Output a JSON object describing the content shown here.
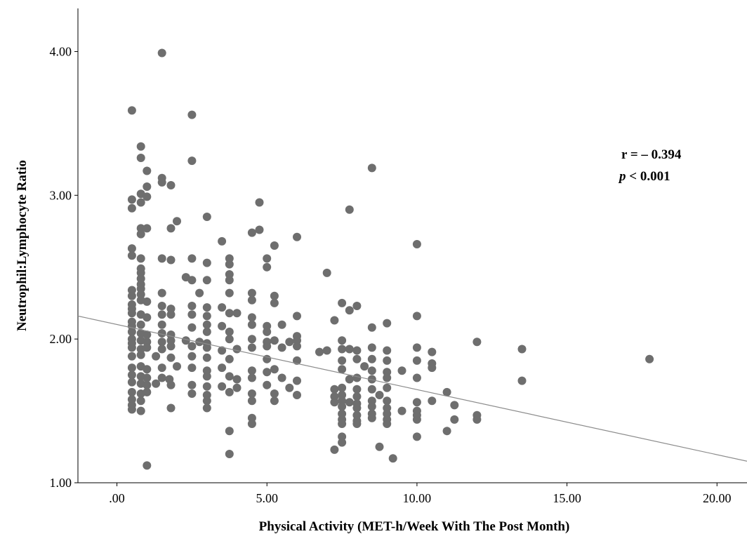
{
  "chart_data": {
    "type": "scatter",
    "title": "",
    "xlabel": "Physical Activity (MET-h/Week With The Post Month)",
    "ylabel": "Neutrophil:Lymphocyte Ratio",
    "xlim": [
      -1.3,
      21.0
    ],
    "ylim": [
      1.0,
      4.3
    ],
    "x_ticks": [
      0,
      5,
      10,
      15,
      20
    ],
    "x_tick_labels": [
      ".00",
      "5.00",
      "10.00",
      "15.00",
      "20.00"
    ],
    "y_ticks": [
      1,
      2,
      3,
      4
    ],
    "y_tick_labels": [
      "1.00",
      "2.00",
      "3.00",
      "4.00"
    ],
    "grid": false,
    "marker_color": "#6e6e6e",
    "line_color": "#8c8c8c",
    "annotations": {
      "r_text": "r = – 0.394",
      "p_italic": "p",
      "p_rest": " < 0.001"
    },
    "fit_line": {
      "x": [
        -1.3,
        21.0
      ],
      "y": [
        2.16,
        1.15
      ]
    },
    "points": [
      [
        0.5,
        3.59
      ],
      [
        1.5,
        3.99
      ],
      [
        2.5,
        3.56
      ],
      [
        0.8,
        3.34
      ],
      [
        0.8,
        3.26
      ],
      [
        2.5,
        3.24
      ],
      [
        1.0,
        3.17
      ],
      [
        1.5,
        3.12
      ],
      [
        1.5,
        3.09
      ],
      [
        1.8,
        3.07
      ],
      [
        1.0,
        3.06
      ],
      [
        0.8,
        3.01
      ],
      [
        1.0,
        2.99
      ],
      [
        0.5,
        2.97
      ],
      [
        0.5,
        2.91
      ],
      [
        0.8,
        2.95
      ],
      [
        2.0,
        2.82
      ],
      [
        3.0,
        2.85
      ],
      [
        4.75,
        2.95
      ],
      [
        7.75,
        2.9
      ],
      [
        8.5,
        3.19
      ],
      [
        0.8,
        2.77
      ],
      [
        0.8,
        2.73
      ],
      [
        1.0,
        2.77
      ],
      [
        1.8,
        2.77
      ],
      [
        4.75,
        2.76
      ],
      [
        4.5,
        2.74
      ],
      [
        3.5,
        2.68
      ],
      [
        6.0,
        2.71
      ],
      [
        5.25,
        2.65
      ],
      [
        10.0,
        2.66
      ],
      [
        0.5,
        2.63
      ],
      [
        0.5,
        2.58
      ],
      [
        0.8,
        2.56
      ],
      [
        1.5,
        2.56
      ],
      [
        1.8,
        2.55
      ],
      [
        2.5,
        2.56
      ],
      [
        3.0,
        2.53
      ],
      [
        3.75,
        2.56
      ],
      [
        3.75,
        2.52
      ],
      [
        5.0,
        2.56
      ],
      [
        5.0,
        2.5
      ],
      [
        0.8,
        2.49
      ],
      [
        0.8,
        2.46
      ],
      [
        7.0,
        2.46
      ],
      [
        0.8,
        2.42
      ],
      [
        2.3,
        2.43
      ],
      [
        2.5,
        2.41
      ],
      [
        3.0,
        2.41
      ],
      [
        3.75,
        2.45
      ],
      [
        3.75,
        2.41
      ],
      [
        0.8,
        2.38
      ],
      [
        0.8,
        2.35
      ],
      [
        0.5,
        2.34
      ],
      [
        0.5,
        2.3
      ],
      [
        0.8,
        2.31
      ],
      [
        1.5,
        2.32
      ],
      [
        2.75,
        2.32
      ],
      [
        3.75,
        2.32
      ],
      [
        4.5,
        2.32
      ],
      [
        5.25,
        2.3
      ],
      [
        0.5,
        2.24
      ],
      [
        0.5,
        2.21
      ],
      [
        0.8,
        2.27
      ],
      [
        1.0,
        2.26
      ],
      [
        1.5,
        2.23
      ],
      [
        1.8,
        2.21
      ],
      [
        2.5,
        2.23
      ],
      [
        3.0,
        2.22
      ],
      [
        3.5,
        2.22
      ],
      [
        4.5,
        2.27
      ],
      [
        5.25,
        2.25
      ],
      [
        7.5,
        2.25
      ],
      [
        8.0,
        2.23
      ],
      [
        7.75,
        2.2
      ],
      [
        0.5,
        2.18
      ],
      [
        0.8,
        2.17
      ],
      [
        1.0,
        2.15
      ],
      [
        1.5,
        2.17
      ],
      [
        1.8,
        2.17
      ],
      [
        2.5,
        2.17
      ],
      [
        3.0,
        2.16
      ],
      [
        3.75,
        2.18
      ],
      [
        4.0,
        2.18
      ],
      [
        4.5,
        2.15
      ],
      [
        6.0,
        2.16
      ],
      [
        7.25,
        2.13
      ],
      [
        10.0,
        2.16
      ],
      [
        9.0,
        2.11
      ],
      [
        0.5,
        2.12
      ],
      [
        0.5,
        2.09
      ],
      [
        0.8,
        2.1
      ],
      [
        1.5,
        2.1
      ],
      [
        2.5,
        2.08
      ],
      [
        3.0,
        2.1
      ],
      [
        3.5,
        2.09
      ],
      [
        5.0,
        2.09
      ],
      [
        5.5,
        2.1
      ],
      [
        4.5,
        2.1
      ],
      [
        8.5,
        2.08
      ],
      [
        0.5,
        2.05
      ],
      [
        0.8,
        2.04
      ],
      [
        1.0,
        2.03
      ],
      [
        1.5,
        2.04
      ],
      [
        1.8,
        2.03
      ],
      [
        3.0,
        2.05
      ],
      [
        3.75,
        2.05
      ],
      [
        5.0,
        2.05
      ],
      [
        6.0,
        2.02
      ],
      [
        0.5,
        2.0
      ],
      [
        0.5,
        1.97
      ],
      [
        0.8,
        1.99
      ],
      [
        1.0,
        1.98
      ],
      [
        1.5,
        1.98
      ],
      [
        1.8,
        1.99
      ],
      [
        2.3,
        1.99
      ],
      [
        2.75,
        1.98
      ],
      [
        3.0,
        1.97
      ],
      [
        3.75,
        2.0
      ],
      [
        4.5,
        2.0
      ],
      [
        5.0,
        1.98
      ],
      [
        5.25,
        1.99
      ],
      [
        5.75,
        1.98
      ],
      [
        6.0,
        1.99
      ],
      [
        7.5,
        1.99
      ],
      [
        12.0,
        1.98
      ],
      [
        0.5,
        1.94
      ],
      [
        0.8,
        1.93
      ],
      [
        1.0,
        1.94
      ],
      [
        1.5,
        1.93
      ],
      [
        1.8,
        1.95
      ],
      [
        2.5,
        1.95
      ],
      [
        3.0,
        1.94
      ],
      [
        3.5,
        1.92
      ],
      [
        4.0,
        1.93
      ],
      [
        4.5,
        1.94
      ],
      [
        5.0,
        1.95
      ],
      [
        5.5,
        1.94
      ],
      [
        6.0,
        1.95
      ],
      [
        6.75,
        1.91
      ],
      [
        7.0,
        1.92
      ],
      [
        7.5,
        1.93
      ],
      [
        7.75,
        1.93
      ],
      [
        8.0,
        1.92
      ],
      [
        8.5,
        1.94
      ],
      [
        9.0,
        1.92
      ],
      [
        10.0,
        1.94
      ],
      [
        10.5,
        1.91
      ],
      [
        13.5,
        1.93
      ],
      [
        17.75,
        1.86
      ],
      [
        0.5,
        1.88
      ],
      [
        0.8,
        1.89
      ],
      [
        1.3,
        1.88
      ],
      [
        1.8,
        1.87
      ],
      [
        2.5,
        1.88
      ],
      [
        3.0,
        1.87
      ],
      [
        3.75,
        1.86
      ],
      [
        5.0,
        1.86
      ],
      [
        6.0,
        1.85
      ],
      [
        7.5,
        1.85
      ],
      [
        8.0,
        1.86
      ],
      [
        8.5,
        1.86
      ],
      [
        9.0,
        1.85
      ],
      [
        10.0,
        1.85
      ],
      [
        10.5,
        1.83
      ],
      [
        0.5,
        1.8
      ],
      [
        0.8,
        1.81
      ],
      [
        1.0,
        1.79
      ],
      [
        1.5,
        1.8
      ],
      [
        2.0,
        1.81
      ],
      [
        2.5,
        1.8
      ],
      [
        3.0,
        1.78
      ],
      [
        3.5,
        1.8
      ],
      [
        4.5,
        1.78
      ],
      [
        5.0,
        1.77
      ],
      [
        5.25,
        1.79
      ],
      [
        7.5,
        1.79
      ],
      [
        8.25,
        1.81
      ],
      [
        8.5,
        1.78
      ],
      [
        9.0,
        1.77
      ],
      [
        9.5,
        1.78
      ],
      [
        10.5,
        1.8
      ],
      [
        0.5,
        1.75
      ],
      [
        0.8,
        1.74
      ],
      [
        1.0,
        1.73
      ],
      [
        1.5,
        1.73
      ],
      [
        1.75,
        1.72
      ],
      [
        3.0,
        1.74
      ],
      [
        3.75,
        1.74
      ],
      [
        4.0,
        1.72
      ],
      [
        4.5,
        1.73
      ],
      [
        5.5,
        1.73
      ],
      [
        6.0,
        1.71
      ],
      [
        7.75,
        1.72
      ],
      [
        8.0,
        1.73
      ],
      [
        8.5,
        1.72
      ],
      [
        9.0,
        1.73
      ],
      [
        10.0,
        1.73
      ],
      [
        13.5,
        1.71
      ],
      [
        0.5,
        1.7
      ],
      [
        0.8,
        1.69
      ],
      [
        1.0,
        1.68
      ],
      [
        1.3,
        1.69
      ],
      [
        1.8,
        1.68
      ],
      [
        2.5,
        1.68
      ],
      [
        3.0,
        1.67
      ],
      [
        3.5,
        1.67
      ],
      [
        4.0,
        1.66
      ],
      [
        5.0,
        1.68
      ],
      [
        5.75,
        1.66
      ],
      [
        7.25,
        1.65
      ],
      [
        7.5,
        1.66
      ],
      [
        8.0,
        1.65
      ],
      [
        8.5,
        1.65
      ],
      [
        9.0,
        1.66
      ],
      [
        0.5,
        1.63
      ],
      [
        0.8,
        1.62
      ],
      [
        1.0,
        1.63
      ],
      [
        2.5,
        1.62
      ],
      [
        3.0,
        1.61
      ],
      [
        3.75,
        1.63
      ],
      [
        4.5,
        1.62
      ],
      [
        5.25,
        1.62
      ],
      [
        6.0,
        1.61
      ],
      [
        7.25,
        1.6
      ],
      [
        7.5,
        1.61
      ],
      [
        8.0,
        1.6
      ],
      [
        8.75,
        1.61
      ],
      [
        11.0,
        1.63
      ],
      [
        0.5,
        1.58
      ],
      [
        0.5,
        1.54
      ],
      [
        0.8,
        1.57
      ],
      [
        3.0,
        1.57
      ],
      [
        4.5,
        1.57
      ],
      [
        5.25,
        1.57
      ],
      [
        7.25,
        1.56
      ],
      [
        7.5,
        1.57
      ],
      [
        7.75,
        1.56
      ],
      [
        8.0,
        1.55
      ],
      [
        8.5,
        1.57
      ],
      [
        9.0,
        1.57
      ],
      [
        10.0,
        1.56
      ],
      [
        10.5,
        1.57
      ],
      [
        0.5,
        1.51
      ],
      [
        0.8,
        1.5
      ],
      [
        1.8,
        1.52
      ],
      [
        3.0,
        1.52
      ],
      [
        7.5,
        1.53
      ],
      [
        8.0,
        1.52
      ],
      [
        8.5,
        1.53
      ],
      [
        9.0,
        1.52
      ],
      [
        9.5,
        1.5
      ],
      [
        10.0,
        1.5
      ],
      [
        11.25,
        1.54
      ],
      [
        7.5,
        1.48
      ],
      [
        8.0,
        1.47
      ],
      [
        8.5,
        1.48
      ],
      [
        9.0,
        1.48
      ],
      [
        10.0,
        1.47
      ],
      [
        12.0,
        1.47
      ],
      [
        4.5,
        1.45
      ],
      [
        7.5,
        1.44
      ],
      [
        8.0,
        1.43
      ],
      [
        8.5,
        1.45
      ],
      [
        9.0,
        1.44
      ],
      [
        10.0,
        1.44
      ],
      [
        11.25,
        1.44
      ],
      [
        12.0,
        1.44
      ],
      [
        4.5,
        1.41
      ],
      [
        7.5,
        1.41
      ],
      [
        8.0,
        1.41
      ],
      [
        9.0,
        1.41
      ],
      [
        3.75,
        1.36
      ],
      [
        11.0,
        1.36
      ],
      [
        7.5,
        1.32
      ],
      [
        10.0,
        1.32
      ],
      [
        7.5,
        1.28
      ],
      [
        7.25,
        1.23
      ],
      [
        8.75,
        1.25
      ],
      [
        3.75,
        1.2
      ],
      [
        9.2,
        1.17
      ],
      [
        1.0,
        1.12
      ]
    ]
  }
}
